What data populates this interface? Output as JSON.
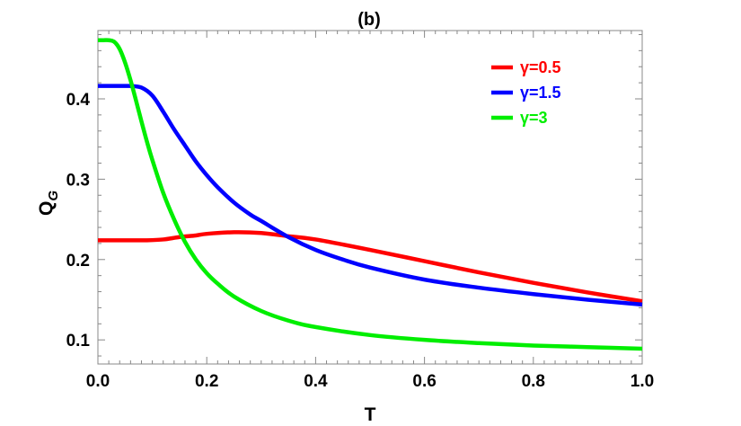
{
  "chart_data": {
    "type": "line",
    "title": "(b)",
    "xlabel": "T",
    "ylabel": "Q",
    "ylabel_sub": "G",
    "xlim": [
      0.0,
      1.0
    ],
    "ylim": [
      0.07,
      0.485
    ],
    "xticks": [
      0.0,
      0.2,
      0.4,
      0.6,
      0.8,
      1.0
    ],
    "xtick_labels": [
      "0.0",
      "0.2",
      "0.4",
      "0.6",
      "0.8",
      "1.0"
    ],
    "yticks": [
      0.1,
      0.2,
      0.3,
      0.4
    ],
    "ytick_labels": [
      "0.1",
      "0.2",
      "0.3",
      "0.4"
    ],
    "grid": false,
    "legend_position": "top-right",
    "series": [
      {
        "name": "γ=0.5",
        "color": "#ff0000",
        "x": [
          0.0,
          0.03,
          0.06,
          0.09,
          0.12,
          0.15,
          0.18,
          0.2,
          0.25,
          0.3,
          0.35,
          0.4,
          0.5,
          0.6,
          0.7,
          0.8,
          0.9,
          1.0
        ],
        "y": [
          0.224,
          0.224,
          0.224,
          0.224,
          0.225,
          0.228,
          0.23,
          0.232,
          0.234,
          0.233,
          0.229,
          0.225,
          0.212,
          0.198,
          0.184,
          0.171,
          0.159,
          0.148
        ]
      },
      {
        "name": "γ=1.5",
        "color": "#0000ff",
        "x": [
          0.0,
          0.02,
          0.04,
          0.06,
          0.08,
          0.1,
          0.12,
          0.14,
          0.16,
          0.18,
          0.2,
          0.22,
          0.25,
          0.28,
          0.3,
          0.35,
          0.4,
          0.45,
          0.5,
          0.6,
          0.7,
          0.8,
          0.9,
          1.0
        ],
        "y": [
          0.416,
          0.416,
          0.416,
          0.416,
          0.414,
          0.404,
          0.384,
          0.362,
          0.342,
          0.322,
          0.305,
          0.29,
          0.271,
          0.256,
          0.248,
          0.228,
          0.212,
          0.2,
          0.19,
          0.175,
          0.165,
          0.157,
          0.15,
          0.144
        ]
      },
      {
        "name": "γ=3",
        "color": "#00ee00",
        "x": [
          0.0,
          0.01,
          0.02,
          0.03,
          0.04,
          0.05,
          0.06,
          0.07,
          0.08,
          0.09,
          0.1,
          0.12,
          0.14,
          0.16,
          0.18,
          0.2,
          0.22,
          0.25,
          0.3,
          0.35,
          0.4,
          0.5,
          0.6,
          0.7,
          0.8,
          0.9,
          1.0
        ],
        "y": [
          0.473,
          0.473,
          0.473,
          0.471,
          0.462,
          0.445,
          0.423,
          0.398,
          0.372,
          0.347,
          0.324,
          0.283,
          0.25,
          0.222,
          0.2,
          0.183,
          0.17,
          0.154,
          0.136,
          0.124,
          0.116,
          0.106,
          0.1,
          0.096,
          0.093,
          0.091,
          0.089
        ]
      }
    ]
  }
}
